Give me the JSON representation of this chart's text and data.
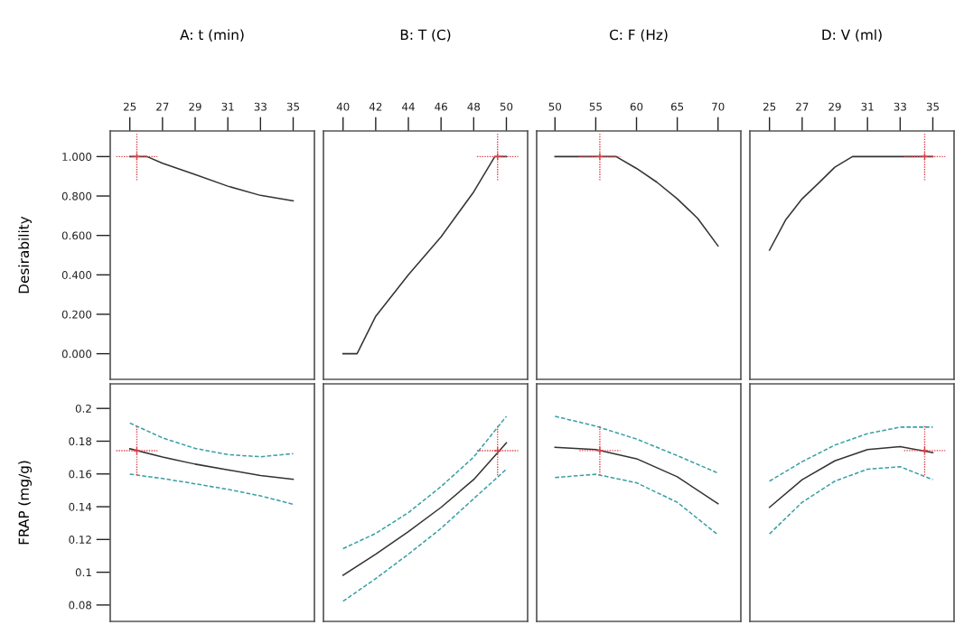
{
  "chart_data": [
    {
      "type": "line",
      "xlabel": "A: t (min)",
      "ylabel": "Desirability",
      "xlim": [
        23.8,
        36.3
      ],
      "xticks": [
        25,
        27,
        29,
        31,
        33,
        35
      ],
      "ylim": [
        -0.13,
        1.13
      ],
      "yticks": [
        {
          "value": 0,
          "label": "0.000"
        },
        {
          "value": 0.2,
          "label": "0.200"
        },
        {
          "value": 0.4,
          "label": "0.400"
        },
        {
          "value": 0.6,
          "label": "0.600"
        },
        {
          "value": 0.8,
          "label": "0.800"
        },
        {
          "value": 1,
          "label": "1.000"
        }
      ],
      "series": [
        {
          "color": "#333333",
          "x": [
            25,
            26.05,
            27,
            29,
            31,
            33,
            35
          ],
          "values": [
            1,
            1,
            0.966,
            0.909,
            0.85,
            0.803,
            0.776
          ]
        },
        {
          "type": "scatter",
          "color": "#d9434a",
          "marker": "cross",
          "line_style": "dotted",
          "x": [
            25.43
          ],
          "values": [
            1
          ],
          "errors": [
            0.12
          ],
          "xerrors": [
            1.26
          ]
        }
      ]
    },
    {
      "type": "line",
      "xlabel": "B: T (C)",
      "xlim": [
        38.8,
        51.3
      ],
      "xticks": [
        40,
        42,
        44,
        46,
        48,
        50
      ],
      "ylim": [
        -0.13,
        1.13
      ],
      "tick_labels": "x",
      "series": [
        {
          "color": "#333333",
          "x": [
            40,
            40.86,
            42,
            44,
            46,
            48,
            49.29,
            50
          ],
          "values": [
            0,
            0,
            0.19,
            0.4,
            0.593,
            0.821,
            1,
            1
          ]
        },
        {
          "type": "scatter",
          "color": "#d9434a",
          "marker": "cross",
          "line_style": "dotted",
          "x": [
            49.46
          ],
          "values": [
            1
          ],
          "errors": [
            0.12
          ],
          "xerrors": [
            1.26
          ]
        }
      ]
    },
    {
      "type": "line",
      "xlabel": "C: F (Hz)",
      "xlim": [
        47.75,
        72.8
      ],
      "xticks": [
        50,
        55,
        60,
        65,
        70
      ],
      "ylim": [
        -0.13,
        1.13
      ],
      "tick_labels": "x",
      "series": [
        {
          "color": "#333333",
          "x": [
            50,
            57.5,
            60,
            62.5,
            65,
            67.5,
            70
          ],
          "values": [
            1,
            1,
            0.94,
            0.87,
            0.786,
            0.687,
            0.547
          ]
        },
        {
          "type": "scatter",
          "color": "#d9434a",
          "marker": "cross",
          "line_style": "dotted",
          "x": [
            55.5
          ],
          "values": [
            1
          ],
          "errors": [
            0.12
          ],
          "xerrors": [
            2.5
          ]
        }
      ]
    },
    {
      "type": "line",
      "xlabel": "D: V (ml)",
      "xlim": [
        23.8,
        36.3
      ],
      "xticks": [
        25,
        27,
        29,
        31,
        33,
        35
      ],
      "ylim": [
        -0.13,
        1.13
      ],
      "tick_labels": "x",
      "series": [
        {
          "color": "#333333",
          "x": [
            25,
            26,
            27,
            28,
            29,
            30.08,
            35
          ],
          "values": [
            0.525,
            0.68,
            0.786,
            0.865,
            0.946,
            1,
            1
          ]
        },
        {
          "type": "scatter",
          "color": "#d9434a",
          "marker": "cross",
          "line_style": "dotted",
          "x": [
            34.5
          ],
          "values": [
            1
          ],
          "errors": [
            0.12
          ],
          "xerrors": [
            1.26
          ]
        }
      ]
    },
    {
      "type": "line",
      "ylabel": "FRAP (mg/g)",
      "xlim": [
        23.8,
        36.3
      ],
      "ylim": [
        0.07,
        0.215
      ],
      "yticks": [
        0.08,
        0.1,
        0.12,
        0.14,
        0.16,
        0.18,
        0.2
      ],
      "tick_labels": "y",
      "series": [
        {
          "color": "#333333",
          "x": [
            25,
            27,
            29,
            31,
            33,
            35
          ],
          "values": [
            0.1754,
            0.1703,
            0.166,
            0.1625,
            0.159,
            0.1567
          ]
        },
        {
          "color": "#3a9fa6",
          "line_style": "dashed",
          "x": [
            25,
            27,
            29,
            31,
            33,
            35
          ],
          "values": [
            0.1911,
            0.182,
            0.1756,
            0.1718,
            0.1705,
            0.1724
          ]
        },
        {
          "color": "#3a9fa6",
          "line_style": "dashed",
          "x": [
            25,
            27,
            29,
            31,
            33,
            35
          ],
          "values": [
            0.1599,
            0.1572,
            0.154,
            0.1506,
            0.1466,
            0.1415
          ]
        },
        {
          "type": "scatter",
          "color": "#d9434a",
          "marker": "cross",
          "line_style": "dotted",
          "x": [
            25.43
          ],
          "values": [
            0.1742
          ],
          "errors": [
            0.015
          ],
          "xerrors": [
            1.26
          ]
        }
      ]
    },
    {
      "type": "line",
      "xlim": [
        38.8,
        51.3
      ],
      "ylim": [
        0.07,
        0.215
      ],
      "tick_labels": false,
      "series": [
        {
          "color": "#333333",
          "x": [
            40,
            42,
            44,
            46,
            48,
            50
          ],
          "values": [
            0.0982,
            0.111,
            0.1248,
            0.1396,
            0.1566,
            0.179
          ]
        },
        {
          "color": "#3a9fa6",
          "line_style": "dashed",
          "x": [
            40,
            42,
            44,
            46,
            48,
            50
          ],
          "values": [
            0.1144,
            0.1237,
            0.1364,
            0.1523,
            0.1703,
            0.1952
          ]
        },
        {
          "color": "#3a9fa6",
          "line_style": "dashed",
          "x": [
            40,
            42,
            44,
            46,
            48,
            50
          ],
          "values": [
            0.0823,
            0.0961,
            0.111,
            0.1268,
            0.1449,
            0.1629
          ]
        },
        {
          "type": "scatter",
          "color": "#d9434a",
          "marker": "cross",
          "line_style": "dotted",
          "x": [
            49.46
          ],
          "values": [
            0.1742
          ],
          "errors": [
            0.015
          ],
          "xerrors": [
            1.26
          ]
        }
      ]
    },
    {
      "type": "line",
      "xlim": [
        47.75,
        72.8
      ],
      "ylim": [
        0.07,
        0.215
      ],
      "tick_labels": false,
      "series": [
        {
          "color": "#333333",
          "x": [
            50,
            55,
            60,
            65,
            70
          ],
          "values": [
            0.1763,
            0.1749,
            0.1693,
            0.1583,
            0.1418
          ]
        },
        {
          "color": "#3a9fa6",
          "line_style": "dashed",
          "x": [
            50,
            55,
            60,
            65,
            70
          ],
          "values": [
            0.1952,
            0.1892,
            0.1813,
            0.1712,
            0.1605
          ]
        },
        {
          "color": "#3a9fa6",
          "line_style": "dashed",
          "x": [
            50,
            55,
            60,
            65,
            70
          ],
          "values": [
            0.1578,
            0.1598,
            0.1546,
            0.1427,
            0.1228
          ]
        },
        {
          "type": "scatter",
          "color": "#d9434a",
          "marker": "cross",
          "line_style": "dotted",
          "x": [
            55.5
          ],
          "values": [
            0.1743
          ],
          "errors": [
            0.015
          ],
          "xerrors": [
            2.5
          ]
        }
      ]
    },
    {
      "type": "line",
      "xlim": [
        23.8,
        36.3
      ],
      "ylim": [
        0.07,
        0.215
      ],
      "tick_labels": false,
      "series": [
        {
          "color": "#333333",
          "x": [
            25,
            27,
            29,
            31,
            33,
            35
          ],
          "values": [
            0.1396,
            0.1565,
            0.168,
            0.1749,
            0.1767,
            0.173
          ]
        },
        {
          "color": "#3a9fa6",
          "line_style": "dashed",
          "x": [
            25,
            27,
            29,
            31,
            33,
            35
          ],
          "values": [
            0.1556,
            0.1675,
            0.1776,
            0.1846,
            0.1886,
            0.1886
          ]
        },
        {
          "color": "#3a9fa6",
          "line_style": "dashed",
          "x": [
            25,
            27,
            29,
            31,
            33,
            35
          ],
          "values": [
            0.1234,
            0.1427,
            0.1556,
            0.1629,
            0.1644,
            0.1565
          ]
        },
        {
          "type": "scatter",
          "color": "#d9434a",
          "marker": "cross",
          "line_style": "dotted",
          "x": [
            34.5
          ],
          "values": [
            0.1743
          ],
          "errors": [
            0.015
          ],
          "xerrors": [
            1.26
          ]
        }
      ]
    }
  ]
}
